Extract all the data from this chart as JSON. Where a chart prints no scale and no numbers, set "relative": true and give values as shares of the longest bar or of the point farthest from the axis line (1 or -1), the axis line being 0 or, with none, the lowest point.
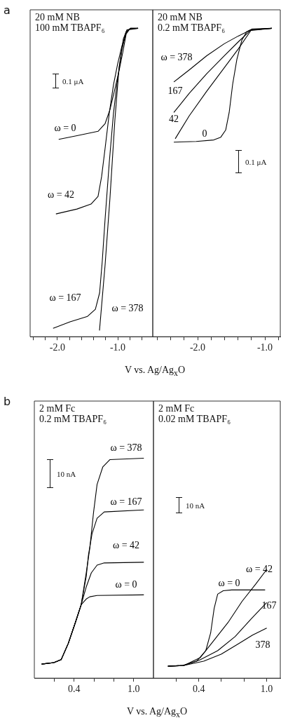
{
  "chart_data": [
    {
      "type": "line",
      "title": "20 mM NB",
      "subtitle": "100 mM TBAPF₆",
      "xlabel": "V vs. Ag/Ag$_{x}$O",
      "relative": true,
      "xlim": [
        -2.45,
        -0.42
      ],
      "xticks": [
        {
          "value": -2.4,
          "label": null
        },
        {
          "value": -2.2,
          "label": null
        },
        {
          "value": -2.0,
          "label": "-2.0"
        },
        {
          "value": -1.8,
          "label": null
        },
        {
          "value": -1.6,
          "label": null
        },
        {
          "value": -1.4,
          "label": null
        },
        {
          "value": -1.2,
          "label": null
        },
        {
          "value": -1.0,
          "label": "-1.0"
        },
        {
          "value": -0.8,
          "label": null
        },
        {
          "value": -0.6,
          "label": null
        }
      ],
      "grid": false,
      "legend": false,
      "marker": "none",
      "line_style": "solid",
      "series": [
        {
          "name": "ω = 0",
          "color": "#000000",
          "x": [
            -1.977,
            -1.674,
            -1.326,
            -1.209,
            -1.128,
            -1.058,
            -0.977,
            -0.907,
            -0.86,
            -0.8,
            -0.663
          ],
          "values": [
            0.64,
            0.652,
            0.666,
            0.691,
            0.737,
            0.794,
            0.863,
            0.931,
            0.982,
            0.998,
            1.0
          ]
        },
        {
          "name": "ω = 42",
          "color": "#000000",
          "x": [
            -2.023,
            -1.674,
            -1.442,
            -1.326,
            -1.267,
            -1.209,
            -1.14,
            -1.07,
            -1.0,
            -0.93,
            -0.86,
            -0.79,
            -0.663
          ],
          "values": [
            0.398,
            0.414,
            0.43,
            0.455,
            0.519,
            0.611,
            0.725,
            0.817,
            0.886,
            0.943,
            0.989,
            1.0,
            1.0
          ]
        },
        {
          "name": "ω = 167",
          "color": "#000000",
          "x": [
            -2.07,
            -1.79,
            -1.5,
            -1.37,
            -1.3,
            -1.256,
            -1.209,
            -1.14,
            -1.07,
            -1.0,
            -0.93,
            -0.86,
            -0.79,
            -0.663
          ],
          "values": [
            0.027,
            0.048,
            0.066,
            0.089,
            0.142,
            0.245,
            0.382,
            0.565,
            0.725,
            0.84,
            0.931,
            0.986,
            1.0,
            1.0
          ]
        },
        {
          "name": "ω = 378",
          "color": "#000000",
          "x": [
            -1.302,
            -1.209,
            -1.128,
            -1.047,
            -0.977,
            -0.907,
            -0.849,
            -0.663
          ],
          "values": [
            0.02,
            0.233,
            0.451,
            0.703,
            0.874,
            0.966,
            0.995,
            1.0
          ]
        }
      ],
      "annotations": [
        "a",
        "0.1 μA"
      ]
    },
    {
      "type": "line",
      "title": "20 mM NB",
      "subtitle": "0.2 mM TBAPF₆",
      "relative": true,
      "xlim": [
        -2.667,
        -0.771
      ],
      "xticks": [
        {
          "value": -2.6,
          "label": null
        },
        {
          "value": -2.4,
          "label": null
        },
        {
          "value": -2.2,
          "label": null
        },
        {
          "value": -2.0,
          "label": "-2.0"
        },
        {
          "value": -1.8,
          "label": null
        },
        {
          "value": -1.6,
          "label": null
        },
        {
          "value": -1.4,
          "label": null
        },
        {
          "value": -1.2,
          "label": null
        },
        {
          "value": -1.0,
          "label": "-1.0"
        },
        {
          "value": -0.8,
          "label": null
        }
      ],
      "grid": false,
      "legend": false,
      "marker": "none",
      "line_style": "solid",
      "series": [
        {
          "name": "ω = 378",
          "color": "#000000",
          "x": [
            -2.354,
            -2.125,
            -1.865,
            -1.604,
            -1.396,
            -1.208,
            -0.896
          ],
          "values": [
            0.826,
            0.865,
            0.911,
            0.95,
            0.975,
            0.995,
            1.0
          ]
        },
        {
          "name": "167",
          "color": "#000000",
          "x": [
            -2.354,
            -2.125,
            -1.865,
            -1.604,
            -1.396,
            -1.208,
            -0.896
          ],
          "values": [
            0.727,
            0.789,
            0.853,
            0.911,
            0.956,
            0.995,
            1.0
          ]
        },
        {
          "name": "42",
          "color": "#000000",
          "x": [
            -2.333,
            -2.125,
            -1.865,
            -1.604,
            -1.396,
            -1.208,
            -0.896
          ],
          "values": [
            0.642,
            0.716,
            0.796,
            0.872,
            0.933,
            0.993,
            1.0
          ]
        },
        {
          "name": "0",
          "color": "#000000",
          "x": [
            -2.354,
            -2.021,
            -1.76,
            -1.656,
            -1.583,
            -1.531,
            -1.479,
            -1.417,
            -1.344,
            -1.271,
            -1.188,
            -0.896
          ],
          "values": [
            0.631,
            0.633,
            0.638,
            0.647,
            0.67,
            0.727,
            0.819,
            0.899,
            0.961,
            0.989,
            0.998,
            1.0
          ]
        }
      ],
      "annotations": [
        "0.1 μA"
      ]
    },
    {
      "type": "line",
      "title": "2 mM Fc",
      "subtitle": "0.2 mM TBAPF₆",
      "xlabel": "V vs. Ag/Ag$_{x}$O",
      "relative": true,
      "xlim": [
        0,
        1.2
      ],
      "xticks": [
        {
          "value": 0.2,
          "label": null
        },
        {
          "value": 0.4,
          "label": "0.4"
        },
        {
          "value": 0.6,
          "label": null
        },
        {
          "value": 0.8,
          "label": null
        },
        {
          "value": 1.0,
          "label": "1.0"
        }
      ],
      "grid": false,
      "legend": false,
      "marker": "none",
      "line_style": "solid",
      "series": [
        {
          "name": "ω = 0",
          "color": "#000000",
          "x": [
            0.074,
            0.197,
            0.27,
            0.342,
            0.414,
            0.472,
            0.523,
            0.559,
            0.632,
            1.103
          ],
          "values": [
            0.064,
            0.071,
            0.084,
            0.158,
            0.254,
            0.334,
            0.36,
            0.37,
            0.376,
            0.379
          ]
        },
        {
          "name": "ω = 42",
          "color": "#000000",
          "x": [
            0.074,
            0.197,
            0.27,
            0.342,
            0.414,
            0.472,
            0.523,
            0.574,
            0.632,
            0.704,
            1.103
          ],
          "values": [
            0.064,
            0.071,
            0.084,
            0.158,
            0.254,
            0.334,
            0.415,
            0.479,
            0.514,
            0.524,
            0.527
          ]
        },
        {
          "name": "ω = 167",
          "color": "#000000",
          "x": [
            0.074,
            0.197,
            0.27,
            0.342,
            0.414,
            0.472,
            0.523,
            0.545,
            0.581,
            0.632,
            0.704,
            1.103
          ],
          "values": [
            0.064,
            0.071,
            0.084,
            0.158,
            0.254,
            0.334,
            0.463,
            0.559,
            0.656,
            0.727,
            0.756,
            0.765
          ]
        },
        {
          "name": "ω = 378",
          "color": "#000000",
          "x": [
            0.074,
            0.197,
            0.27,
            0.342,
            0.414,
            0.472,
            0.523,
            0.559,
            0.596,
            0.632,
            0.69,
            0.762,
            1.103
          ],
          "values": [
            0.064,
            0.071,
            0.084,
            0.158,
            0.254,
            0.334,
            0.479,
            0.592,
            0.752,
            0.881,
            0.961,
            0.994,
            1.0
          ]
        }
      ],
      "annotations": [
        "b",
        "10 nA"
      ]
    },
    {
      "type": "line",
      "title": "2 mM Fc",
      "subtitle": "0.02 mM TBAPF₆",
      "relative": true,
      "xlim": [
        0,
        1.12
      ],
      "xticks": [
        {
          "value": 0.2,
          "label": null
        },
        {
          "value": 0.4,
          "label": "0.4"
        },
        {
          "value": 0.6,
          "label": null
        },
        {
          "value": 0.8,
          "label": null
        },
        {
          "value": 1.0,
          "label": "1.0"
        }
      ],
      "grid": false,
      "legend": false,
      "marker": "none",
      "line_style": "solid",
      "series": [
        {
          "name": "ω = 0",
          "color": "#000000",
          "x": [
            0.128,
            0.258,
            0.381,
            0.462,
            0.505,
            0.536,
            0.567,
            0.616,
            0.69,
            0.986
          ],
          "values": [
            0.11,
            0.117,
            0.156,
            0.253,
            0.416,
            0.643,
            0.773,
            0.805,
            0.812,
            0.812
          ]
        },
        {
          "name": "ω = 42",
          "color": "#000000",
          "x": [
            0.128,
            0.27,
            0.412,
            0.536,
            0.659,
            0.783,
            0.906,
            1.0
          ],
          "values": [
            0.11,
            0.117,
            0.188,
            0.351,
            0.513,
            0.708,
            0.87,
            1.0
          ]
        },
        {
          "name": "167",
          "color": "#000000",
          "x": [
            0.128,
            0.27,
            0.412,
            0.567,
            0.721,
            0.863,
            1.0
          ],
          "values": [
            0.11,
            0.117,
            0.169,
            0.253,
            0.383,
            0.545,
            0.695
          ]
        },
        {
          "name": "378",
          "color": "#000000",
          "x": [
            0.128,
            0.27,
            0.443,
            0.598,
            0.752,
            0.875,
            1.0
          ],
          "values": [
            0.11,
            0.117,
            0.156,
            0.221,
            0.318,
            0.396,
            0.461
          ]
        }
      ],
      "annotations": [
        "10 nA"
      ]
    }
  ]
}
